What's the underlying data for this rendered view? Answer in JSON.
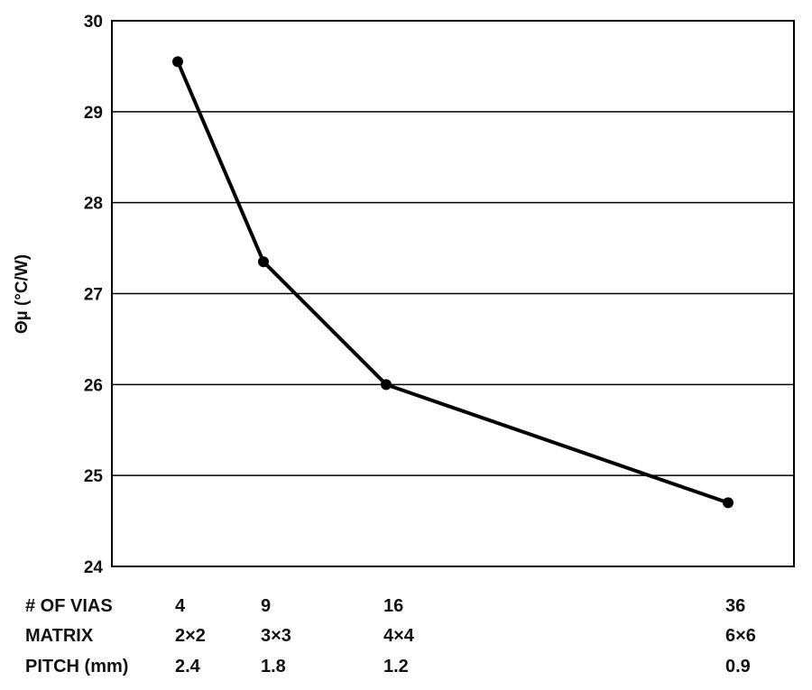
{
  "chart_data": {
    "type": "line",
    "ylabel": "Θµ (°C/W)",
    "ylim": [
      24,
      30
    ],
    "yticks": [
      "24",
      "25",
      "26",
      "27",
      "28",
      "29",
      "30"
    ],
    "grid": true,
    "x_rows": [
      {
        "label": "# OF VIAS",
        "values": [
          "4",
          "9",
          "16",
          "36"
        ]
      },
      {
        "label": "MATRIX",
        "values": [
          "2×2",
          "3×3",
          "4×4",
          "6×6"
        ]
      },
      {
        "label": "PITCH (mm)",
        "values": [
          "2.4",
          "1.8",
          "1.2",
          "0.9"
        ]
      }
    ],
    "series": [
      {
        "x": [
          4,
          9,
          16,
          36
        ],
        "y": [
          29.55,
          27.35,
          26.0,
          24.7
        ],
        "color": "#000000"
      }
    ]
  }
}
